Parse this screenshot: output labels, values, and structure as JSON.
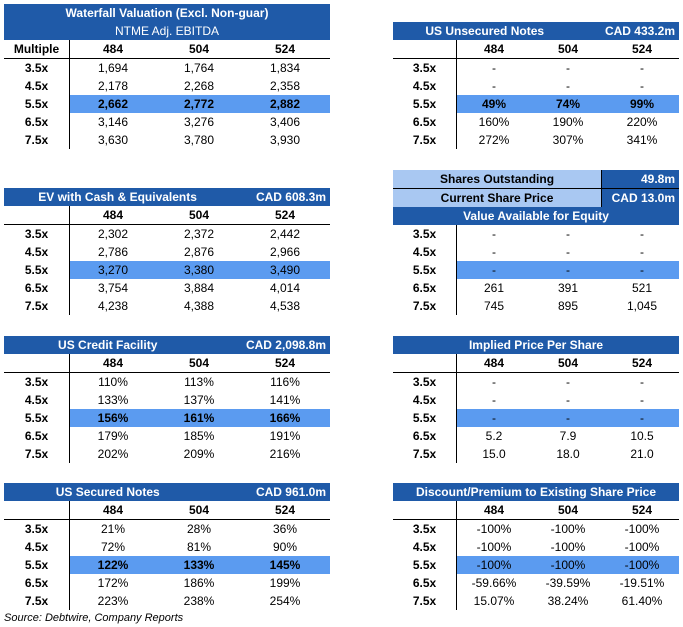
{
  "source": "Source: Debtwire, Company Reports",
  "waterfall": {
    "title": "Waterfall Valuation (Excl. Non-guar)",
    "subtitle": "NTME Adj. EBITDA",
    "row_header": "Multiple",
    "cols": [
      "484",
      "504",
      "524"
    ],
    "rows": [
      {
        "label": "3.5x",
        "values": [
          "1,694",
          "1,764",
          "1,834"
        ]
      },
      {
        "label": "4.5x",
        "values": [
          "2,178",
          "2,268",
          "2,358"
        ]
      },
      {
        "label": "5.5x",
        "values": [
          "2,662",
          "2,772",
          "2,882"
        ]
      },
      {
        "label": "6.5x",
        "values": [
          "3,146",
          "3,276",
          "3,406"
        ]
      },
      {
        "label": "7.5x",
        "values": [
          "3,630",
          "3,780",
          "3,930"
        ]
      }
    ]
  },
  "ev": {
    "title": "EV with Cash & Equivalents",
    "amount": "CAD 608.3m",
    "cols": [
      "484",
      "504",
      "524"
    ],
    "rows": [
      {
        "label": "3.5x",
        "values": [
          "2,302",
          "2,372",
          "2,442"
        ]
      },
      {
        "label": "4.5x",
        "values": [
          "2,786",
          "2,876",
          "2,966"
        ]
      },
      {
        "label": "5.5x",
        "values": [
          "3,270",
          "3,380",
          "3,490"
        ]
      },
      {
        "label": "6.5x",
        "values": [
          "3,754",
          "3,884",
          "4,014"
        ]
      },
      {
        "label": "7.5x",
        "values": [
          "4,238",
          "4,388",
          "4,538"
        ]
      }
    ]
  },
  "credit": {
    "title": "US Credit Facility",
    "amount": "CAD 2,098.8m",
    "cols": [
      "484",
      "504",
      "524"
    ],
    "rows": [
      {
        "label": "3.5x",
        "values": [
          "110%",
          "113%",
          "116%"
        ]
      },
      {
        "label": "4.5x",
        "values": [
          "133%",
          "137%",
          "141%"
        ]
      },
      {
        "label": "5.5x",
        "values": [
          "156%",
          "161%",
          "166%"
        ]
      },
      {
        "label": "6.5x",
        "values": [
          "179%",
          "185%",
          "191%"
        ]
      },
      {
        "label": "7.5x",
        "values": [
          "202%",
          "209%",
          "216%"
        ]
      }
    ]
  },
  "secured": {
    "title": "US Secured Notes",
    "amount": "CAD 961.0m",
    "cols": [
      "484",
      "504",
      "524"
    ],
    "rows": [
      {
        "label": "3.5x",
        "values": [
          "21%",
          "28%",
          "36%"
        ]
      },
      {
        "label": "4.5x",
        "values": [
          "72%",
          "81%",
          "90%"
        ]
      },
      {
        "label": "5.5x",
        "values": [
          "122%",
          "133%",
          "145%"
        ]
      },
      {
        "label": "6.5x",
        "values": [
          "172%",
          "186%",
          "199%"
        ]
      },
      {
        "label": "7.5x",
        "values": [
          "223%",
          "238%",
          "254%"
        ]
      }
    ]
  },
  "unsecured": {
    "title": "US Unsecured Notes",
    "amount": "CAD 433.2m",
    "cols": [
      "484",
      "504",
      "524"
    ],
    "rows": [
      {
        "label": "3.5x",
        "values": [
          "-",
          "-",
          "-"
        ]
      },
      {
        "label": "4.5x",
        "values": [
          "-",
          "-",
          "-"
        ]
      },
      {
        "label": "5.5x",
        "values": [
          "49%",
          "74%",
          "99%"
        ]
      },
      {
        "label": "6.5x",
        "values": [
          "160%",
          "190%",
          "220%"
        ]
      },
      {
        "label": "7.5x",
        "values": [
          "272%",
          "307%",
          "341%"
        ]
      }
    ]
  },
  "shares": {
    "outstanding_label": "Shares Outstanding",
    "outstanding_value": "49.8m",
    "price_label": "Current Share Price",
    "price_value": "CAD 13.0m"
  },
  "equity": {
    "title": "Value Available for Equity",
    "rows": [
      {
        "label": "3.5x",
        "values": [
          "-",
          "-",
          "-"
        ]
      },
      {
        "label": "4.5x",
        "values": [
          "-",
          "-",
          "-"
        ]
      },
      {
        "label": "5.5x",
        "values": [
          "-",
          "-",
          "-"
        ]
      },
      {
        "label": "6.5x",
        "values": [
          "261",
          "391",
          "521"
        ]
      },
      {
        "label": "7.5x",
        "values": [
          "745",
          "895",
          "1,045"
        ]
      }
    ]
  },
  "implied": {
    "title": "Implied Price Per Share",
    "cols": [
      "484",
      "504",
      "524"
    ],
    "rows": [
      {
        "label": "3.5x",
        "values": [
          "-",
          "-",
          "-"
        ]
      },
      {
        "label": "4.5x",
        "values": [
          "-",
          "-",
          "-"
        ]
      },
      {
        "label": "5.5x",
        "values": [
          "-",
          "-",
          "-"
        ]
      },
      {
        "label": "6.5x",
        "values": [
          "5.2",
          "7.9",
          "10.5"
        ]
      },
      {
        "label": "7.5x",
        "values": [
          "15.0",
          "18.0",
          "21.0"
        ]
      }
    ]
  },
  "discount": {
    "title": "Discount/Premium to Existing Share Price",
    "cols": [
      "484",
      "504",
      "524"
    ],
    "rows": [
      {
        "label": "3.5x",
        "values": [
          "-100%",
          "-100%",
          "-100%"
        ]
      },
      {
        "label": "4.5x",
        "values": [
          "-100%",
          "-100%",
          "-100%"
        ]
      },
      {
        "label": "5.5x",
        "values": [
          "-100%",
          "-100%",
          "-100%"
        ]
      },
      {
        "label": "6.5x",
        "values": [
          "-59.66%",
          "-39.59%",
          "-19.51%"
        ]
      },
      {
        "label": "7.5x",
        "values": [
          "15.07%",
          "38.24%",
          "61.40%"
        ]
      }
    ]
  }
}
